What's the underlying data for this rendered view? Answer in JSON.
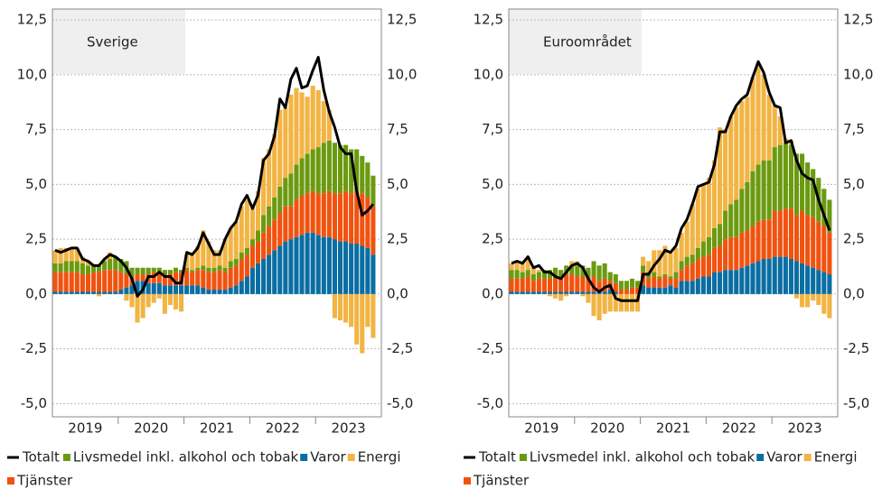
{
  "chart_data": [
    {
      "type": "bar",
      "stacked": true,
      "title": "Sverige",
      "categories": [
        null,
        null,
        null,
        null,
        null,
        null,
        "2019",
        null,
        null,
        null,
        null,
        null,
        null,
        null,
        null,
        null,
        null,
        null,
        "2020",
        null,
        null,
        null,
        null,
        null,
        null,
        null,
        null,
        null,
        null,
        null,
        "2021",
        null,
        null,
        null,
        null,
        null,
        null,
        null,
        null,
        null,
        null,
        null,
        "2022",
        null,
        null,
        null,
        null,
        null,
        null,
        null,
        null,
        null,
        null,
        null,
        "2023",
        null,
        null,
        null,
        null
      ],
      "ylim": [
        -5.6,
        13
      ],
      "yticks": [
        {
          "value": -5,
          "label": "-5,0"
        },
        {
          "value": -2.5,
          "label": "-2,5"
        },
        {
          "value": 0,
          "label": "0,0"
        },
        {
          "value": 2.5,
          "label": "2,5"
        },
        {
          "value": 5,
          "label": "5,0"
        },
        {
          "value": 7.5,
          "label": "7,5"
        },
        {
          "value": 10,
          "label": "10,0"
        },
        {
          "value": 12.5,
          "label": "12,5"
        }
      ],
      "grid": true,
      "series": [
        {
          "name": "Totalt",
          "type": "line",
          "color": "#000000",
          "values": [
            2.0,
            1.9,
            2.0,
            2.1,
            2.1,
            1.6,
            1.5,
            1.3,
            1.3,
            1.6,
            1.8,
            1.7,
            1.5,
            1.2,
            0.7,
            -0.1,
            0.2,
            0.8,
            0.8,
            1.0,
            0.8,
            0.8,
            0.5,
            0.5,
            1.9,
            1.8,
            2.1,
            2.8,
            2.3,
            1.8,
            1.8,
            2.5,
            3.0,
            3.3,
            4.1,
            4.5,
            3.9,
            4.5,
            6.1,
            6.4,
            7.2,
            8.9,
            8.5,
            9.8,
            10.3,
            9.4,
            9.5,
            10.2,
            10.8,
            9.3,
            8.3,
            7.6,
            6.7,
            6.4,
            6.4,
            4.7,
            3.6,
            3.8,
            4.1
          ]
        },
        {
          "name": "Livsmedel inkl. alkohol och tobak",
          "type": "bar",
          "color": "#6b9a10",
          "values": [
            0.4,
            0.4,
            0.5,
            0.5,
            0.5,
            0.5,
            0.4,
            0.3,
            0.3,
            0.4,
            0.5,
            0.6,
            0.6,
            0.6,
            0.4,
            0.3,
            0.3,
            0.3,
            0.2,
            0.2,
            0.2,
            0.2,
            0.2,
            0.1,
            0.1,
            0.1,
            0.1,
            0.2,
            0.2,
            0.2,
            0.2,
            0.2,
            0.3,
            0.3,
            0.3,
            0.3,
            0.3,
            0.5,
            0.8,
            0.9,
            1.0,
            1.2,
            1.3,
            1.5,
            1.6,
            1.7,
            1.8,
            1.9,
            2.1,
            2.3,
            2.3,
            2.3,
            2.2,
            2.1,
            2.0,
            1.9,
            1.7,
            1.6,
            1.4
          ]
        },
        {
          "name": "Varor",
          "type": "bar",
          "color": "#0a6ea3",
          "values": [
            0.1,
            0.1,
            0.1,
            0.1,
            0.1,
            0.1,
            0.1,
            0.1,
            0.1,
            0.1,
            0.1,
            0.1,
            0.2,
            0.3,
            0.4,
            0.6,
            0.6,
            0.5,
            0.5,
            0.5,
            0.4,
            0.4,
            0.4,
            0.4,
            0.4,
            0.4,
            0.4,
            0.3,
            0.2,
            0.2,
            0.2,
            0.2,
            0.3,
            0.4,
            0.6,
            0.8,
            1.2,
            1.4,
            1.6,
            1.8,
            2.0,
            2.2,
            2.4,
            2.5,
            2.6,
            2.7,
            2.8,
            2.8,
            2.7,
            2.6,
            2.6,
            2.5,
            2.4,
            2.4,
            2.3,
            2.3,
            2.2,
            2.1,
            1.8
          ]
        },
        {
          "name": "Energi",
          "type": "bar",
          "color": "#f2b443",
          "values": [
            0.6,
            0.7,
            0.6,
            0.6,
            0.6,
            0.3,
            0.2,
            0.0,
            -0.1,
            0.1,
            0.3,
            0.0,
            0.0,
            -0.3,
            -0.6,
            -1.3,
            -1.1,
            -0.6,
            -0.4,
            -0.2,
            -0.9,
            -0.5,
            -0.7,
            -0.8,
            0.6,
            0.8,
            1.0,
            1.6,
            1.2,
            0.8,
            0.7,
            1.3,
            1.5,
            1.7,
            2.1,
            2.2,
            1.6,
            1.8,
            2.6,
            2.6,
            2.9,
            3.5,
            3.2,
            3.6,
            3.5,
            3.0,
            2.6,
            2.9,
            2.6,
            1.9,
            1.4,
            -1.1,
            -1.2,
            -1.3,
            -1.5,
            -2.3,
            -2.7,
            -1.5,
            -2.0
          ]
        },
        {
          "name": "Tjänster",
          "type": "bar",
          "color": "#f1520f",
          "values": [
            0.9,
            0.9,
            0.9,
            0.9,
            0.9,
            0.8,
            0.8,
            0.9,
            0.9,
            1.0,
            1.0,
            1.0,
            0.8,
            0.6,
            0.4,
            0.3,
            0.3,
            0.4,
            0.5,
            0.5,
            0.5,
            0.5,
            0.6,
            0.6,
            0.7,
            0.6,
            0.7,
            0.8,
            0.8,
            0.8,
            0.9,
            0.8,
            0.9,
            0.9,
            1.0,
            1.0,
            1.0,
            1.0,
            1.2,
            1.3,
            1.4,
            1.5,
            1.6,
            1.5,
            1.7,
            1.8,
            1.8,
            1.9,
            1.9,
            2.0,
            2.1,
            2.1,
            2.2,
            2.3,
            2.3,
            2.4,
            2.4,
            2.3,
            2.2
          ]
        }
      ]
    },
    {
      "type": "bar",
      "stacked": true,
      "title": "Euroområdet",
      "categories": [
        null,
        null,
        null,
        null,
        null,
        null,
        "2019",
        null,
        null,
        null,
        null,
        null,
        null,
        null,
        null,
        null,
        null,
        null,
        "2020",
        null,
        null,
        null,
        null,
        null,
        null,
        null,
        null,
        null,
        null,
        null,
        "2021",
        null,
        null,
        null,
        null,
        null,
        null,
        null,
        null,
        null,
        null,
        null,
        "2022",
        null,
        null,
        null,
        null,
        null,
        null,
        null,
        null,
        null,
        null,
        null,
        "2023",
        null,
        null,
        null,
        null
      ],
      "ylim": [
        -5.6,
        13
      ],
      "yticks": [
        {
          "value": -5,
          "label": "-5,0"
        },
        {
          "value": -2.5,
          "label": "-2,5"
        },
        {
          "value": 0,
          "label": "0,0"
        },
        {
          "value": 2.5,
          "label": "2,5"
        },
        {
          "value": 5,
          "label": "5,0"
        },
        {
          "value": 7.5,
          "label": "7,5"
        },
        {
          "value": 10,
          "label": "10,0"
        },
        {
          "value": 12.5,
          "label": "12,5"
        }
      ],
      "grid": true,
      "series": [
        {
          "name": "Totalt",
          "type": "line",
          "color": "#000000",
          "values": [
            1.4,
            1.5,
            1.4,
            1.7,
            1.2,
            1.3,
            1.0,
            1.0,
            0.8,
            0.7,
            1.0,
            1.3,
            1.4,
            1.2,
            0.7,
            0.3,
            0.1,
            0.3,
            0.4,
            -0.2,
            -0.3,
            -0.3,
            -0.3,
            -0.3,
            0.9,
            0.9,
            1.3,
            1.6,
            2.0,
            1.9,
            2.2,
            3.0,
            3.4,
            4.1,
            4.9,
            5.0,
            5.1,
            5.9,
            7.4,
            7.4,
            8.1,
            8.6,
            8.9,
            9.1,
            9.9,
            10.6,
            10.1,
            9.2,
            8.6,
            8.5,
            6.9,
            7.0,
            6.1,
            5.5,
            5.3,
            5.2,
            4.3,
            3.6,
            2.9
          ]
        },
        {
          "name": "Livsmedel inkl. alkohol och tobak",
          "type": "bar",
          "color": "#6b9a10",
          "values": [
            0.4,
            0.4,
            0.3,
            0.3,
            0.3,
            0.3,
            0.4,
            0.4,
            0.4,
            0.4,
            0.4,
            0.4,
            0.5,
            0.5,
            0.5,
            0.7,
            0.7,
            0.7,
            0.4,
            0.4,
            0.4,
            0.4,
            0.4,
            0.3,
            0.3,
            0.3,
            0.2,
            0.1,
            0.1,
            0.1,
            0.3,
            0.4,
            0.4,
            0.4,
            0.5,
            0.7,
            0.8,
            0.9,
            1.0,
            1.3,
            1.5,
            1.7,
            2.0,
            2.2,
            2.5,
            2.6,
            2.7,
            2.7,
            2.9,
            3.0,
            3.0,
            2.9,
            2.8,
            2.6,
            2.4,
            2.2,
            2.0,
            1.7,
            1.5
          ]
        },
        {
          "name": "Varor",
          "type": "bar",
          "color": "#0a6ea3",
          "values": [
            0.1,
            0.1,
            0.1,
            0.1,
            0.1,
            0.1,
            0.1,
            0.1,
            0.1,
            0.1,
            0.1,
            0.1,
            0.1,
            0.1,
            0.1,
            0.1,
            0.1,
            0.1,
            0.2,
            0.1,
            0.0,
            0.0,
            0.0,
            0.0,
            0.4,
            0.3,
            0.3,
            0.3,
            0.3,
            0.4,
            0.3,
            0.6,
            0.6,
            0.6,
            0.7,
            0.8,
            0.8,
            1.0,
            1.0,
            1.1,
            1.1,
            1.1,
            1.2,
            1.3,
            1.4,
            1.5,
            1.6,
            1.6,
            1.7,
            1.7,
            1.7,
            1.6,
            1.5,
            1.4,
            1.3,
            1.2,
            1.1,
            1.0,
            0.9
          ]
        },
        {
          "name": "Energi",
          "type": "bar",
          "color": "#f2b443",
          "values": [
            0.3,
            0.4,
            0.5,
            0.6,
            0.3,
            0.1,
            0.0,
            -0.1,
            -0.2,
            -0.3,
            -0.1,
            0.2,
            0.2,
            -0.1,
            -0.4,
            -1.0,
            -1.2,
            -0.9,
            -0.8,
            -0.8,
            -0.8,
            -0.8,
            -0.8,
            -0.8,
            0.4,
            0.5,
            1.0,
            1.2,
            1.3,
            1.1,
            1.1,
            1.3,
            1.6,
            2.3,
            2.7,
            2.6,
            2.7,
            3.1,
            4.4,
            3.7,
            4.0,
            4.2,
            4.0,
            3.9,
            4.3,
            4.5,
            3.9,
            3.0,
            1.9,
            1.3,
            0.2,
            0.2,
            -0.2,
            -0.6,
            -0.6,
            -0.3,
            -0.5,
            -0.9,
            -1.1
          ]
        },
        {
          "name": "Tjänster",
          "type": "bar",
          "color": "#f1520f",
          "values": [
            0.6,
            0.6,
            0.6,
            0.7,
            0.5,
            0.6,
            0.6,
            0.6,
            0.7,
            0.6,
            0.8,
            0.8,
            0.7,
            0.7,
            0.6,
            0.7,
            0.5,
            0.6,
            0.4,
            0.4,
            0.2,
            0.2,
            0.3,
            0.3,
            0.6,
            0.4,
            0.5,
            0.4,
            0.5,
            0.3,
            0.4,
            0.5,
            0.7,
            0.8,
            0.9,
            0.9,
            1.0,
            1.1,
            1.2,
            1.4,
            1.5,
            1.5,
            1.6,
            1.6,
            1.7,
            1.8,
            1.8,
            1.8,
            2.1,
            2.1,
            2.2,
            2.3,
            2.1,
            2.4,
            2.3,
            2.3,
            2.2,
            2.1,
            1.9
          ]
        }
      ]
    }
  ]
}
